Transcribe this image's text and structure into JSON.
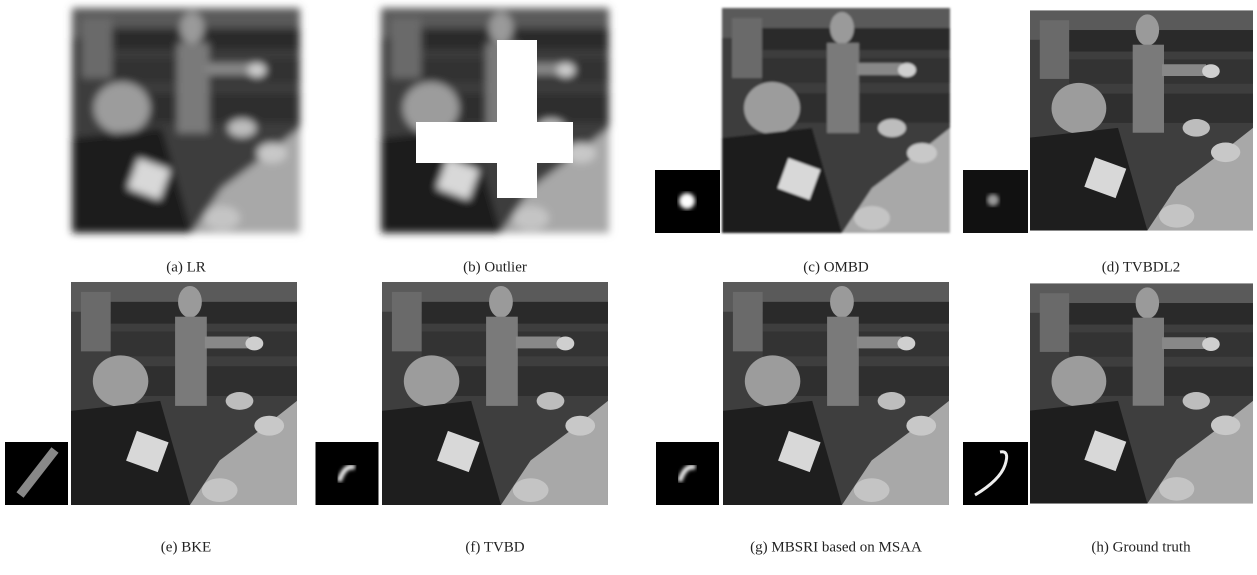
{
  "figure": {
    "captions": [
      "(a) LR",
      "(b) Outlier",
      "(c) OMBD",
      "(d) TVBDL2",
      "(e)  BKE",
      "(f) TVBD",
      "(g) MBSRI based on MSAA",
      "(h) Ground truth"
    ]
  }
}
